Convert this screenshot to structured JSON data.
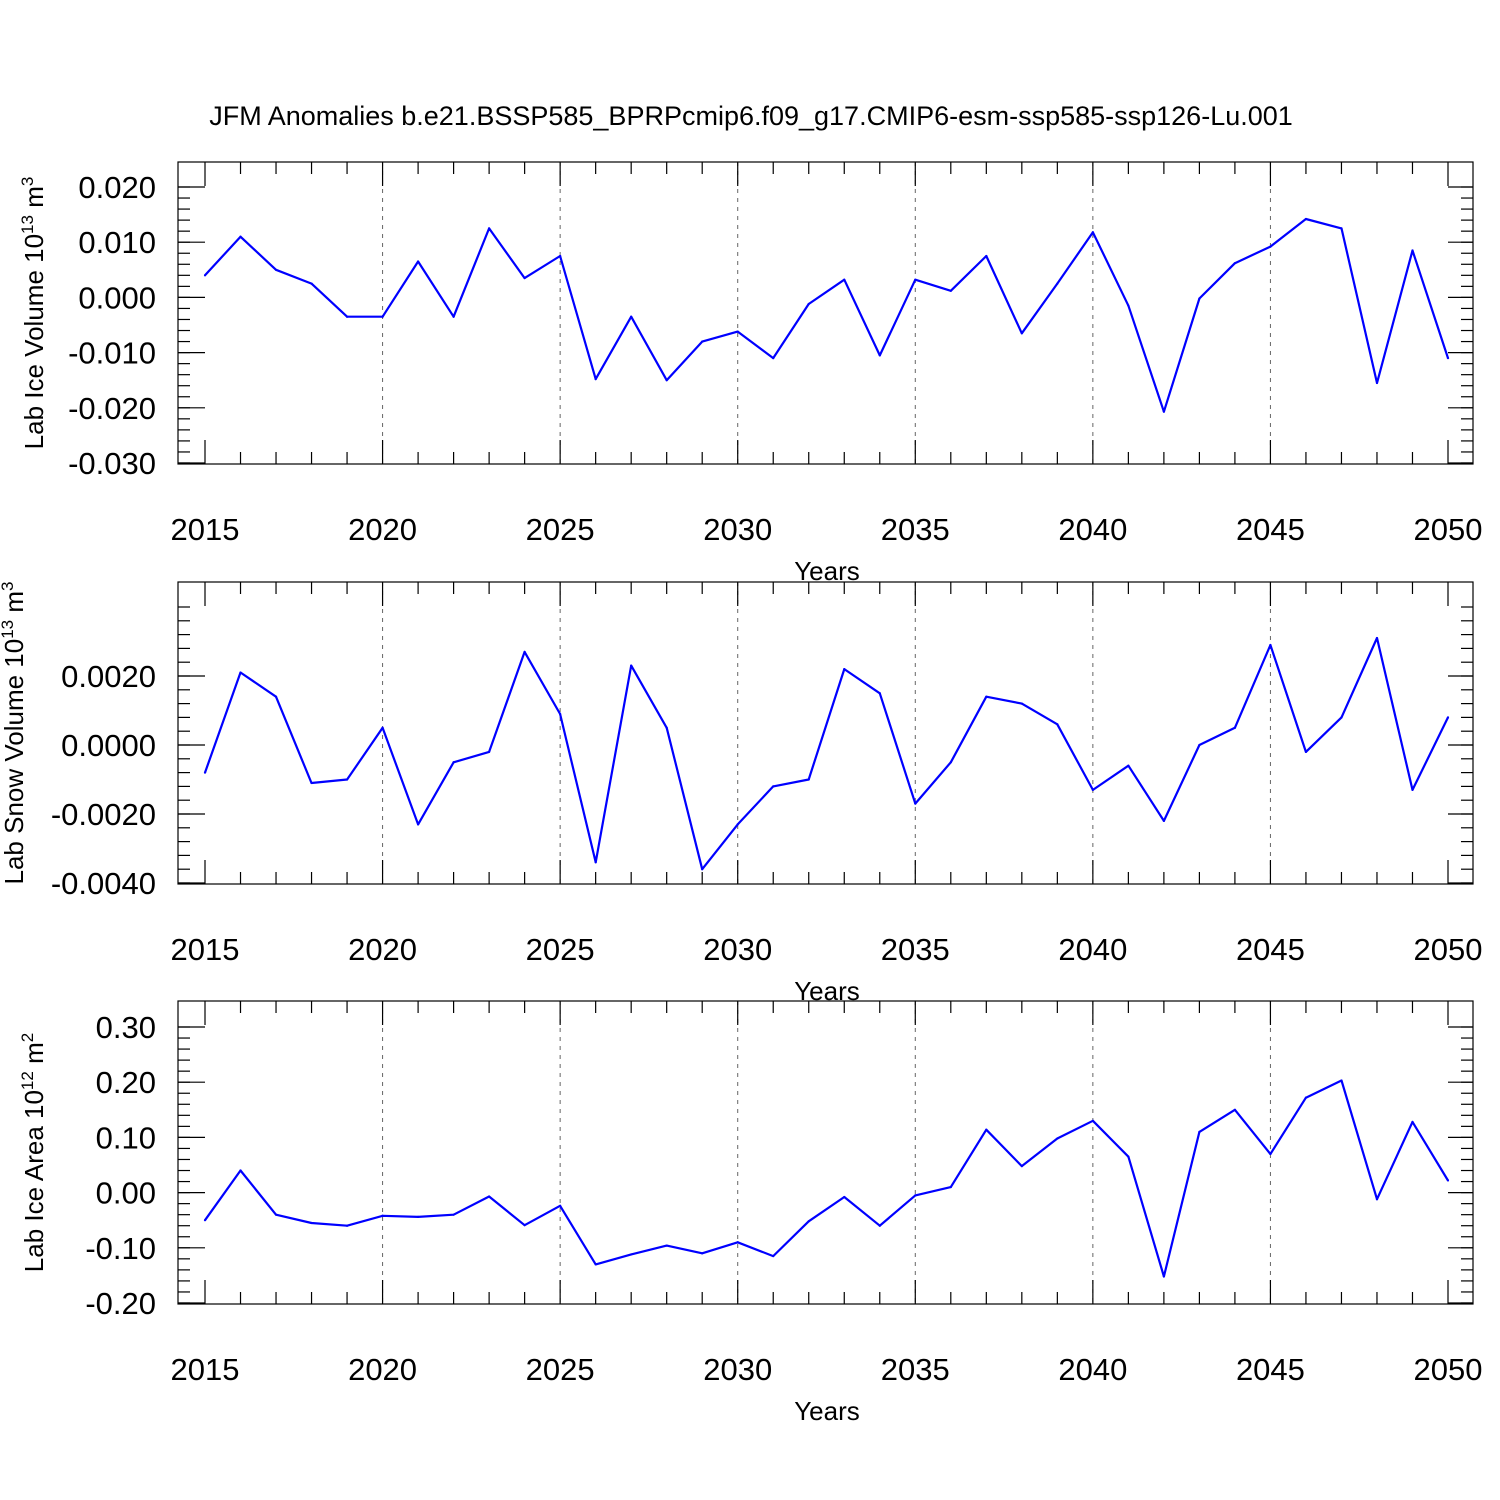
{
  "title": "JFM Anomalies b.e21.BSSP585_BPRPcmip6.f09_g17.CMIP6-esm-ssp585-ssp126-Lu.001",
  "line_color": "#0000ff",
  "chart_data": [
    {
      "type": "line",
      "xlabel": "Years",
      "ylabel": {
        "text": "Lab Ice Volume 10",
        "sup1": "13",
        "mid": " m",
        "sup2": "3"
      },
      "xlim": [
        2015,
        2050
      ],
      "ylim": [
        -0.03,
        0.02
      ],
      "xticks": [
        "2015",
        "2020",
        "2025",
        "2030",
        "2035",
        "2040",
        "2045",
        "2050"
      ],
      "yticks": [
        "-0.030",
        "-0.020",
        "-0.010",
        "0.000",
        "0.010",
        "0.020"
      ],
      "grid": "dashed vertical lines at 2020, 2025, 2030, 2035, 2040, 2045",
      "x": [
        2015,
        2016,
        2017,
        2018,
        2019,
        2020,
        2021,
        2022,
        2023,
        2024,
        2025,
        2026,
        2027,
        2028,
        2029,
        2030,
        2031,
        2032,
        2033,
        2034,
        2035,
        2036,
        2037,
        2038,
        2039,
        2040,
        2041,
        2042,
        2043,
        2044,
        2045,
        2046,
        2047,
        2048,
        2049,
        2050
      ],
      "values": [
        0.004,
        0.011,
        0.005,
        0.0025,
        -0.0035,
        -0.0035,
        0.0065,
        -0.0035,
        0.0125,
        0.0035,
        0.0075,
        -0.0148,
        -0.0035,
        -0.015,
        -0.008,
        -0.0062,
        -0.011,
        -0.0012,
        0.0032,
        -0.0105,
        0.0032,
        0.0012,
        0.0075,
        -0.0065,
        0.0025,
        0.0118,
        -0.0015,
        -0.0207,
        -0.0002,
        0.0062,
        0.0092,
        0.0142,
        0.0125,
        -0.0155,
        0.0085,
        -0.011
      ]
    },
    {
      "type": "line",
      "xlabel": "Years",
      "ylabel": {
        "text": "Lab Snow Volume 10",
        "sup1": "13",
        "mid": " m",
        "sup2": "3"
      },
      "xlim": [
        2015,
        2050
      ],
      "ylim": [
        -0.004,
        0.004
      ],
      "xticks": [
        "2015",
        "2020",
        "2025",
        "2030",
        "2035",
        "2040",
        "2045",
        "2050"
      ],
      "yticks": [
        "-0.0040",
        "-0.0020",
        "0.0000",
        "0.0020"
      ],
      "grid": "dashed vertical lines at 2020, 2025, 2030, 2035, 2040, 2045",
      "x": [
        2015,
        2016,
        2017,
        2018,
        2019,
        2020,
        2021,
        2022,
        2023,
        2024,
        2025,
        2026,
        2027,
        2028,
        2029,
        2030,
        2031,
        2032,
        2033,
        2034,
        2035,
        2036,
        2037,
        2038,
        2039,
        2040,
        2041,
        2042,
        2043,
        2044,
        2045,
        2046,
        2047,
        2048,
        2049,
        2050
      ],
      "values": [
        -0.0008,
        0.0021,
        0.0014,
        -0.0011,
        -0.001,
        0.0005,
        -0.0023,
        -0.0005,
        -0.0002,
        0.0027,
        0.0009,
        -0.0034,
        0.0023,
        0.0005,
        -0.0036,
        -0.0023,
        -0.0012,
        -0.001,
        0.0022,
        0.0015,
        -0.0017,
        -0.0005,
        0.0014,
        0.0012,
        0.0006,
        -0.0013,
        -0.0006,
        -0.0022,
        0.0,
        0.0005,
        0.0029,
        -0.0002,
        0.0008,
        0.0031,
        -0.0013,
        0.0008
      ]
    },
    {
      "type": "line",
      "xlabel": "Years",
      "ylabel": {
        "text": "Lab Ice Area 10",
        "sup1": "12",
        "mid": " m",
        "sup2": "2"
      },
      "xlim": [
        2015,
        2050
      ],
      "ylim": [
        -0.2,
        0.3
      ],
      "xticks": [
        "2015",
        "2020",
        "2025",
        "2030",
        "2035",
        "2040",
        "2045",
        "2050"
      ],
      "yticks": [
        "-0.20",
        "-0.10",
        "0.00",
        "0.10",
        "0.20",
        "0.30"
      ],
      "grid": "dashed vertical lines at 2020, 2025, 2030, 2035, 2040, 2045",
      "x": [
        2015,
        2016,
        2017,
        2018,
        2019,
        2020,
        2021,
        2022,
        2023,
        2024,
        2025,
        2026,
        2027,
        2028,
        2029,
        2030,
        2031,
        2032,
        2033,
        2034,
        2035,
        2036,
        2037,
        2038,
        2039,
        2040,
        2041,
        2042,
        2043,
        2044,
        2045,
        2046,
        2047,
        2048,
        2049,
        2050
      ],
      "values": [
        -0.05,
        0.04,
        -0.04,
        -0.055,
        -0.06,
        -0.042,
        -0.044,
        -0.04,
        -0.007,
        -0.059,
        -0.024,
        -0.13,
        -0.112,
        -0.096,
        -0.11,
        -0.09,
        -0.115,
        -0.052,
        -0.008,
        -0.06,
        -0.005,
        0.01,
        0.114,
        0.048,
        0.098,
        0.13,
        0.065,
        -0.152,
        0.11,
        0.15,
        0.07,
        0.172,
        0.203,
        -0.012,
        0.128,
        0.022
      ]
    }
  ]
}
